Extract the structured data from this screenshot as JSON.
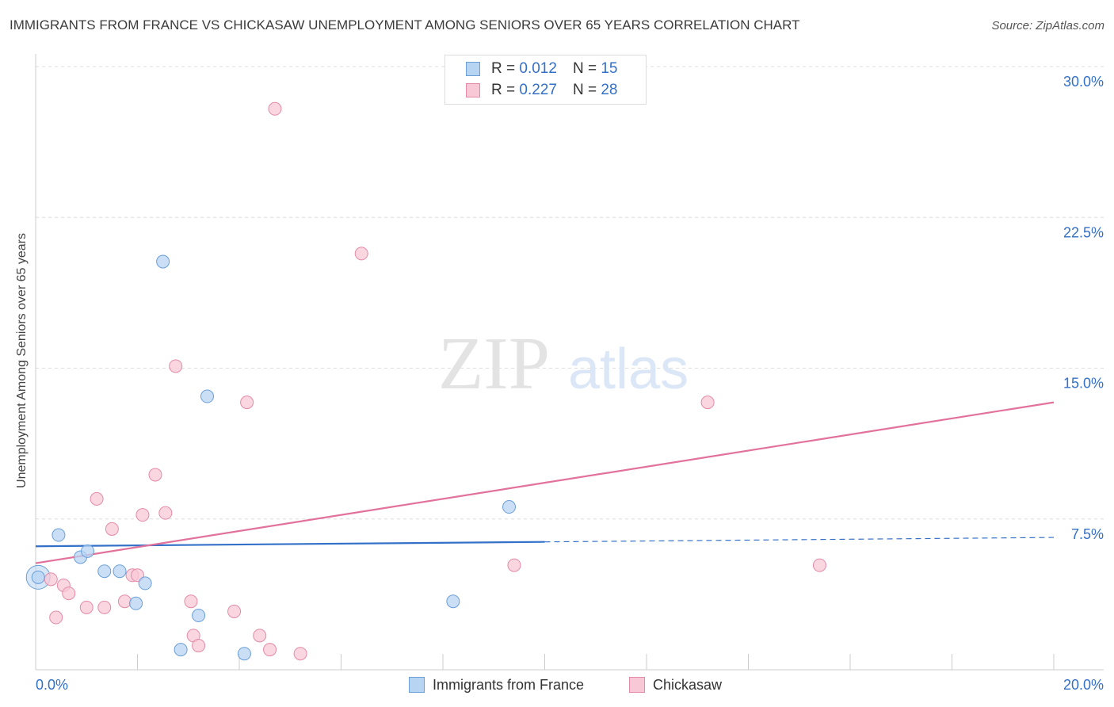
{
  "title": "IMMIGRANTS FROM FRANCE VS CHICKASAW UNEMPLOYMENT AMONG SENIORS OVER 65 YEARS CORRELATION CHART",
  "source": "Source: ZipAtlas.com",
  "watermark": {
    "zip": "ZIP",
    "atlas": "atlas"
  },
  "legend": {
    "rows": [
      {
        "r_label": "R =",
        "r_value": "0.012",
        "n_label": "N =",
        "n_value": "15"
      },
      {
        "r_label": "R =",
        "r_value": "0.227",
        "n_label": "N =",
        "n_value": "28"
      }
    ]
  },
  "bottom_legend": {
    "series1": "Immigrants from France",
    "series2": "Chickasaw"
  },
  "colors": {
    "blue": "#3370c8",
    "blue_fill": "#b8d4f3",
    "pink": "#e2719b",
    "pink_fill": "#f8c8d7",
    "grid": "#dddddd"
  },
  "chart_data": {
    "type": "scatter",
    "title": "IMMIGRANTS FROM FRANCE VS CHICKASAW UNEMPLOYMENT AMONG SENIORS OVER 65 YEARS CORRELATION CHART",
    "xlabel": "",
    "ylabel": "Unemployment Among Seniors over 65 years",
    "xlim": [
      0,
      20
    ],
    "ylim": [
      0,
      30
    ],
    "x_tick_labels": [
      "0.0%",
      "20.0%"
    ],
    "y_ticks": [
      7.5,
      15,
      22.5,
      30
    ],
    "y_tick_labels": [
      "7.5%",
      "15.0%",
      "22.5%",
      "30.0%"
    ],
    "grid": true,
    "legend_position": "top-center",
    "series": [
      {
        "name": "Immigrants from France",
        "r": 0.012,
        "n": 15,
        "points": [
          [
            0.05,
            4.6
          ],
          [
            0.45,
            6.7
          ],
          [
            0.88,
            5.6
          ],
          [
            1.02,
            5.9
          ],
          [
            1.35,
            4.9
          ],
          [
            1.65,
            4.9
          ],
          [
            1.97,
            3.3
          ],
          [
            2.15,
            4.3
          ],
          [
            2.5,
            20.3
          ],
          [
            2.85,
            1.0
          ],
          [
            3.2,
            2.7
          ],
          [
            3.37,
            13.6
          ],
          [
            4.1,
            0.8
          ],
          [
            8.2,
            3.4
          ],
          [
            9.3,
            8.1
          ]
        ],
        "trend": {
          "x": [
            0,
            10,
            20
          ],
          "y": [
            6.14,
            6.36,
            6.58
          ],
          "solid_until": 10
        }
      },
      {
        "name": "Chickasaw",
        "r": 0.227,
        "n": 28,
        "points": [
          [
            0.3,
            4.5
          ],
          [
            0.4,
            2.6
          ],
          [
            0.55,
            4.2
          ],
          [
            0.65,
            3.8
          ],
          [
            1.0,
            3.1
          ],
          [
            1.2,
            8.5
          ],
          [
            1.35,
            3.1
          ],
          [
            1.5,
            7.0
          ],
          [
            1.75,
            3.4
          ],
          [
            1.9,
            4.7
          ],
          [
            2.0,
            4.7
          ],
          [
            2.1,
            7.7
          ],
          [
            2.35,
            9.7
          ],
          [
            2.55,
            7.8
          ],
          [
            2.75,
            15.1
          ],
          [
            3.05,
            3.4
          ],
          [
            3.1,
            1.7
          ],
          [
            3.2,
            1.2
          ],
          [
            3.9,
            2.9
          ],
          [
            4.15,
            13.3
          ],
          [
            4.4,
            1.7
          ],
          [
            4.6,
            1.0
          ],
          [
            4.7,
            27.9
          ],
          [
            5.2,
            0.8
          ],
          [
            6.4,
            20.7
          ],
          [
            9.4,
            5.2
          ],
          [
            13.2,
            13.3
          ],
          [
            15.4,
            5.2
          ]
        ],
        "trend": {
          "x": [
            0,
            20
          ],
          "y": [
            5.3,
            13.3
          ]
        }
      }
    ]
  }
}
